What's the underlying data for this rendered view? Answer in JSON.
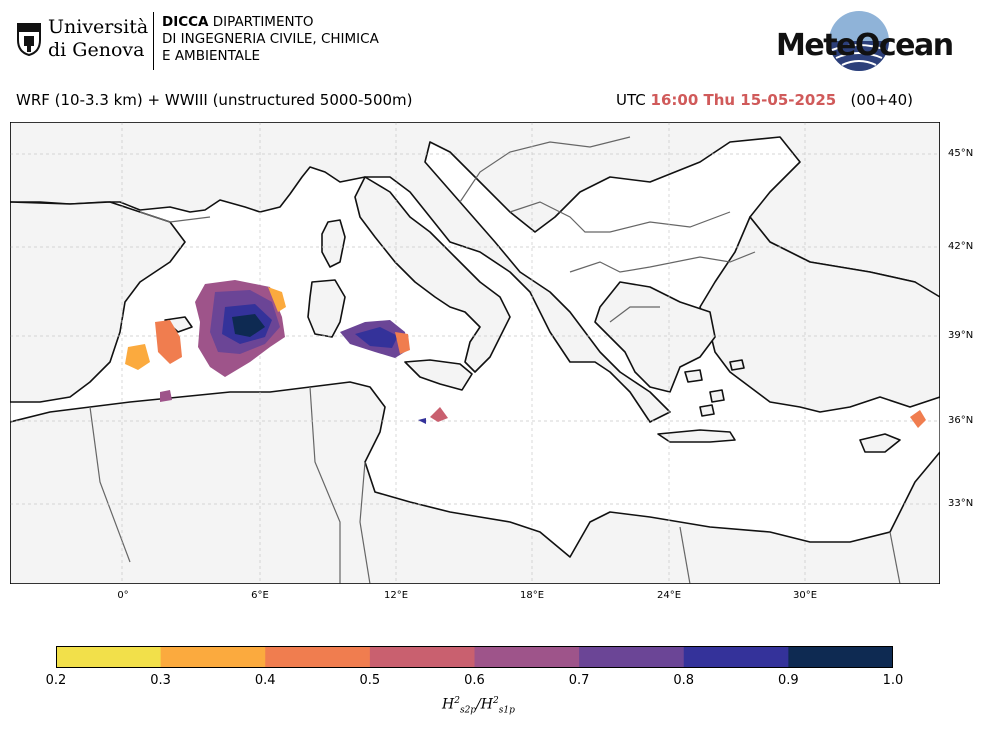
{
  "header": {
    "university_line1": "Università",
    "university_line2": "di Genova",
    "dept_abbr": "DICCA",
    "dept_line1_rest": " DIPARTIMENTO",
    "dept_line2": "DI INGEGNERIA CIVILE, CHIMICA",
    "dept_line3": "E AMBIENTALE",
    "brand": "MeteOcean"
  },
  "title": {
    "model": "WRF (10-3.3 km) + WWIII (unstructured 5000-500m)",
    "utc_label": "UTC ",
    "time": "16:00 Thu 15-05-2025",
    "lead": "   (00+40)"
  },
  "map": {
    "lat_labels": [
      "45°N",
      "42°N",
      "39°N",
      "36°N",
      "33°N"
    ],
    "lon_labels": [
      "0°",
      "6°E",
      "12°E",
      "18°E",
      "24°E",
      "30°E"
    ],
    "land_color": "#f4f4f4",
    "sea_color": "#ffffff",
    "grid": true
  },
  "colorbar": {
    "ticks": [
      "0.2",
      "0.3",
      "0.4",
      "0.5",
      "0.6",
      "0.7",
      "0.8",
      "0.9",
      "1.0"
    ],
    "colors": [
      "#f2e04a",
      "#fbaa3e",
      "#f07d4f",
      "#c9606f",
      "#9e548a",
      "#6b4596",
      "#34329a",
      "#0e2a52"
    ],
    "label_main": "H",
    "label_sup1": "2",
    "label_sub1": "s2p",
    "label_sep": "/H",
    "label_sup2": "2",
    "label_sub2": "s1p"
  }
}
